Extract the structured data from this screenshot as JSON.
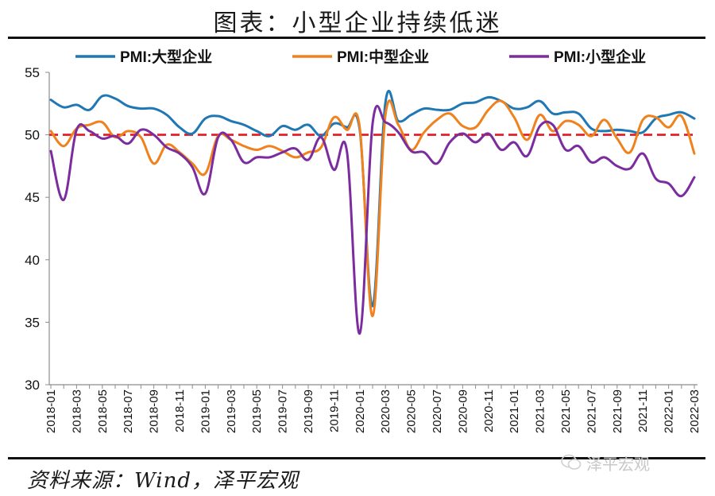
{
  "title": "图表：小型企业持续低迷",
  "source": "资料来源：Wind，泽平宏观",
  "watermark": "泽平宏观",
  "colors": {
    "large": "#1f77b4",
    "medium": "#f0821e",
    "small": "#7b2c9e",
    "reference": "#e8141e"
  },
  "chart_data": {
    "type": "line",
    "title": "图表：小型企业持续低迷",
    "xlabel": "",
    "ylabel": "",
    "ylim": [
      30,
      55
    ],
    "yticks": [
      30,
      35,
      40,
      45,
      50,
      55
    ],
    "grid": false,
    "legend_position": "top",
    "reference_line": {
      "y": 50,
      "style": "dashed",
      "color": "#e8141e"
    },
    "x": [
      "2018-01",
      "2018-02",
      "2018-03",
      "2018-04",
      "2018-05",
      "2018-06",
      "2018-07",
      "2018-08",
      "2018-09",
      "2018-10",
      "2018-11",
      "2018-12",
      "2019-01",
      "2019-02",
      "2019-03",
      "2019-04",
      "2019-05",
      "2019-06",
      "2019-07",
      "2019-08",
      "2019-09",
      "2019-10",
      "2019-11",
      "2019-12",
      "2020-01",
      "2020-02",
      "2020-03",
      "2020-04",
      "2020-05",
      "2020-06",
      "2020-07",
      "2020-08",
      "2020-09",
      "2020-10",
      "2020-11",
      "2020-12",
      "2021-01",
      "2021-02",
      "2021-03",
      "2021-04",
      "2021-05",
      "2021-06",
      "2021-07",
      "2021-08",
      "2021-09",
      "2021-10",
      "2021-11",
      "2021-12",
      "2022-01",
      "2022-02",
      "2022-03"
    ],
    "x_tick_labels": [
      "2018-01",
      "2018-03",
      "2018-05",
      "2018-07",
      "2018-09",
      "2018-11",
      "2019-01",
      "2019-03",
      "2019-05",
      "2019-07",
      "2019-09",
      "2019-11",
      "2020-01",
      "2020-03",
      "2020-05",
      "2020-07",
      "2020-09",
      "2020-11",
      "2021-01",
      "2021-03",
      "2021-05",
      "2021-07",
      "2021-09",
      "2021-11",
      "2022-01",
      "2022-03"
    ],
    "series": [
      {
        "name": "PMI:大型企业",
        "key": "large",
        "values": [
          52.8,
          52.2,
          52.4,
          52.0,
          53.1,
          52.9,
          52.3,
          52.1,
          52.1,
          51.6,
          50.6,
          50.1,
          51.3,
          51.5,
          51.1,
          50.8,
          50.3,
          49.9,
          50.7,
          50.4,
          50.8,
          49.9,
          50.9,
          50.6,
          50.4,
          36.3,
          52.6,
          51.1,
          51.6,
          52.1,
          52.0,
          52.0,
          52.5,
          52.6,
          53.0,
          52.7,
          52.1,
          52.2,
          52.7,
          51.7,
          51.8,
          51.7,
          50.5,
          50.3,
          50.4,
          50.3,
          50.2,
          51.3,
          51.6,
          51.8,
          51.3
        ]
      },
      {
        "name": "PMI:中型企业",
        "key": "medium",
        "values": [
          50.3,
          49.1,
          50.5,
          50.8,
          51.0,
          49.8,
          50.3,
          49.8,
          47.7,
          49.2,
          48.6,
          47.7,
          46.9,
          49.9,
          49.6,
          49.1,
          48.8,
          49.1,
          48.7,
          48.2,
          48.6,
          49.0,
          51.4,
          50.4,
          50.6,
          35.5,
          51.6,
          50.8,
          48.8,
          50.2,
          51.2,
          51.7,
          50.7,
          50.6,
          52.0,
          52.7,
          51.4,
          49.6,
          51.6,
          50.3,
          51.1,
          50.8,
          49.9,
          51.2,
          49.7,
          48.6,
          51.2,
          51.4,
          50.6,
          51.5,
          48.5
        ]
      },
      {
        "name": "PMI:小型企业",
        "key": "small",
        "values": [
          48.7,
          44.8,
          50.4,
          50.3,
          49.7,
          49.9,
          49.3,
          50.4,
          50.0,
          49.0,
          48.5,
          47.4,
          45.3,
          49.8,
          49.6,
          47.8,
          48.2,
          48.2,
          48.6,
          48.9,
          48.0,
          49.8,
          47.2,
          48.7,
          34.1,
          50.9,
          51.0,
          50.2,
          48.7,
          48.6,
          47.7,
          49.4,
          50.1,
          49.4,
          50.1,
          48.8,
          49.4,
          48.3,
          50.7,
          50.8,
          48.8,
          49.1,
          47.8,
          48.2,
          47.5,
          47.3,
          48.5,
          46.5,
          46.1,
          45.1,
          46.6
        ]
      }
    ]
  }
}
